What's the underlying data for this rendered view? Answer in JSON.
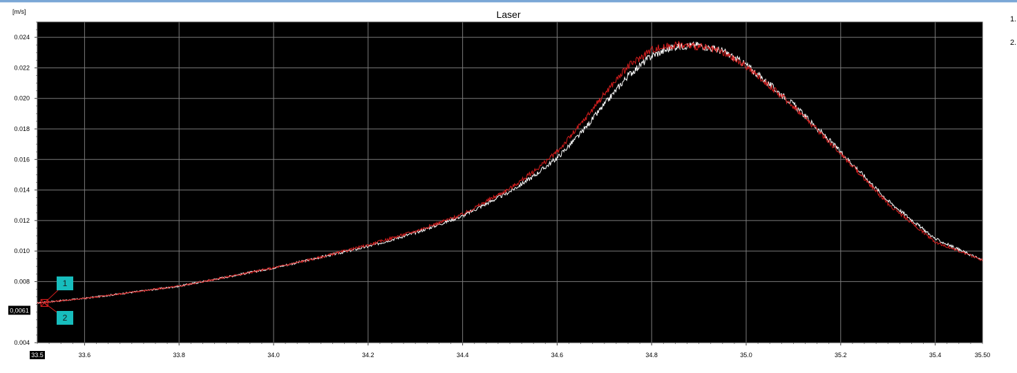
{
  "chart_data": {
    "type": "line",
    "title": "Laser",
    "ylabel": "[m/s]",
    "xlabel": "",
    "xlim": [
      33.5,
      35.5
    ],
    "ylim": [
      0.004,
      0.025
    ],
    "grid": true,
    "background": "#000000",
    "x_ticks": [
      "33.6",
      "33.8",
      "34.0",
      "34.2",
      "34.4",
      "34.6",
      "34.8",
      "35.0",
      "35.2",
      "35.4"
    ],
    "x_start_label": "33.5",
    "x_end_label": "35.50",
    "y_ticks": [
      "0.004",
      "0.008",
      "0.010",
      "0.012",
      "0.014",
      "0.016",
      "0.018",
      "0.020",
      "0.022",
      "0.024"
    ],
    "cursor": {
      "x": 33.51,
      "y": 0.0061,
      "label": "0,0061"
    },
    "markers": [
      {
        "label": "1",
        "color": "#17bdbd"
      },
      {
        "label": "2",
        "color": "#17bdbd"
      }
    ],
    "series": [
      {
        "color": "#ffffff",
        "x": [
          33.5,
          33.6,
          33.7,
          33.8,
          33.9,
          34.0,
          34.1,
          34.2,
          34.3,
          34.4,
          34.5,
          34.55,
          34.6,
          34.65,
          34.7,
          34.75,
          34.8,
          34.85,
          34.9,
          34.95,
          35.0,
          35.1,
          35.2,
          35.3,
          35.4,
          35.5
        ],
        "y": [
          0.0066,
          0.0069,
          0.0073,
          0.0077,
          0.0083,
          0.0089,
          0.0096,
          0.0103,
          0.0112,
          0.0123,
          0.0139,
          0.0149,
          0.0161,
          0.0177,
          0.0196,
          0.0215,
          0.0228,
          0.0234,
          0.0235,
          0.0231,
          0.0222,
          0.0196,
          0.0165,
          0.0133,
          0.0108,
          0.0094
        ]
      },
      {
        "color": "#d81e1e",
        "x": [
          33.5,
          33.6,
          33.7,
          33.8,
          33.9,
          34.0,
          34.1,
          34.2,
          34.3,
          34.4,
          34.5,
          34.55,
          34.6,
          34.65,
          34.7,
          34.75,
          34.8,
          34.85,
          34.9,
          34.95,
          35.0,
          35.1,
          35.2,
          35.3,
          35.4,
          35.5
        ],
        "y": [
          0.0066,
          0.0069,
          0.0073,
          0.0077,
          0.0083,
          0.0089,
          0.0096,
          0.0104,
          0.0113,
          0.0124,
          0.0141,
          0.0152,
          0.0165,
          0.0183,
          0.0203,
          0.0221,
          0.0232,
          0.0235,
          0.0234,
          0.023,
          0.0221,
          0.0195,
          0.0164,
          0.0131,
          0.0106,
          0.0094
        ]
      }
    ]
  },
  "legend": {
    "items": [
      "1.",
      "2."
    ]
  }
}
